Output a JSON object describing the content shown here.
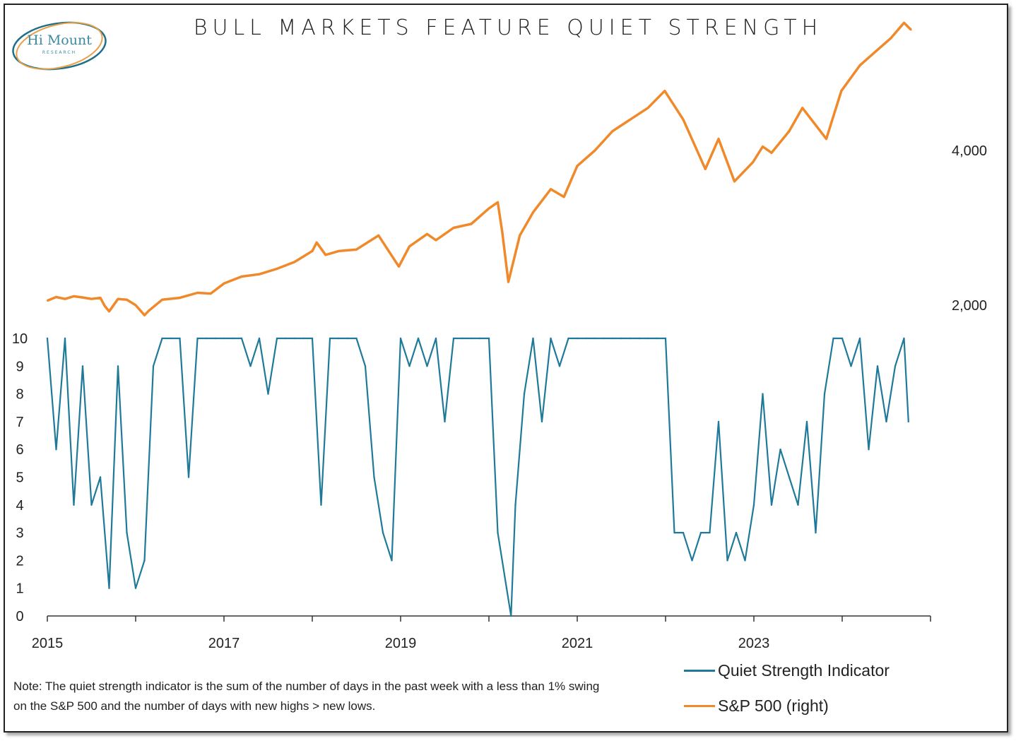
{
  "title": "BULL MARKETS FEATURE QUIET STRENGTH",
  "logo": {
    "name": "Hi Mount",
    "sub": "RESEARCH"
  },
  "note": "Note: The quiet strength indicator is the sum of the number of days in the past week with a less than 1% swing on the S&P 500 and the number of days with new highs > new lows.",
  "colors": {
    "qsi": "#1f7a99",
    "spx": "#f0892a",
    "logo": "#3b8aa0",
    "logo_ring_orange": "#e8a04a"
  },
  "chart_data": {
    "type": "line",
    "title": "BULL MARKETS FEATURE QUIET STRENGTH",
    "x_ticks": [
      "2015",
      "2017",
      "2019",
      "2021",
      "2023"
    ],
    "x_range": [
      2015.0,
      2025.0
    ],
    "left_axis": {
      "ticks": [
        0,
        1,
        2,
        3,
        4,
        5,
        6,
        7,
        8,
        9,
        10
      ],
      "ylim": [
        0,
        10
      ]
    },
    "right_axis": {
      "ticks": [
        2000,
        4000
      ],
      "tick_labels": [
        "2,000",
        "4,000"
      ]
    },
    "legend_position": "bottom-right",
    "series": [
      {
        "name": "Quiet Strength Indicator",
        "axis": "left",
        "x": [
          2015.0,
          2015.1,
          2015.2,
          2015.3,
          2015.4,
          2015.5,
          2015.6,
          2015.7,
          2015.8,
          2015.9,
          2016.0,
          2016.1,
          2016.2,
          2016.3,
          2016.4,
          2016.5,
          2016.6,
          2016.7,
          2016.8,
          2016.9,
          2017.0,
          2017.1,
          2017.2,
          2017.3,
          2017.4,
          2017.5,
          2017.6,
          2017.7,
          2017.8,
          2017.9,
          2018.0,
          2018.1,
          2018.2,
          2018.3,
          2018.4,
          2018.5,
          2018.6,
          2018.7,
          2018.8,
          2018.9,
          2019.0,
          2019.1,
          2019.2,
          2019.3,
          2019.4,
          2019.5,
          2019.6,
          2019.7,
          2019.8,
          2019.9,
          2020.0,
          2020.1,
          2020.2,
          2020.25,
          2020.3,
          2020.4,
          2020.5,
          2020.6,
          2020.7,
          2020.8,
          2020.9,
          2021.0,
          2021.1,
          2021.2,
          2021.3,
          2021.4,
          2021.5,
          2021.6,
          2021.7,
          2021.8,
          2021.9,
          2022.0,
          2022.1,
          2022.2,
          2022.3,
          2022.4,
          2022.5,
          2022.6,
          2022.7,
          2022.8,
          2022.9,
          2023.0,
          2023.1,
          2023.2,
          2023.3,
          2023.4,
          2023.5,
          2023.6,
          2023.7,
          2023.8,
          2023.9,
          2024.0,
          2024.1,
          2024.2,
          2024.3,
          2024.4,
          2024.5,
          2024.6,
          2024.7,
          2024.75
        ],
        "y": [
          10,
          6,
          10,
          4,
          9,
          4,
          5,
          1,
          9,
          3,
          1,
          2,
          9,
          10,
          10,
          10,
          5,
          10,
          10,
          10,
          10,
          10,
          10,
          9,
          10,
          8,
          10,
          10,
          10,
          10,
          10,
          4,
          10,
          10,
          10,
          10,
          9,
          5,
          3,
          2,
          10,
          9,
          10,
          9,
          10,
          7,
          10,
          10,
          10,
          10,
          10,
          3,
          1,
          0,
          4,
          8,
          10,
          7,
          10,
          9,
          10,
          10,
          10,
          10,
          10,
          10,
          10,
          10,
          10,
          10,
          10,
          10,
          3,
          3,
          2,
          3,
          3,
          7,
          2,
          3,
          2,
          4,
          8,
          4,
          6,
          5,
          4,
          7,
          3,
          8,
          10,
          10,
          9,
          10,
          6,
          9,
          7,
          9,
          10,
          7
        ]
      },
      {
        "name": "S&P 500 (right)",
        "axis": "right",
        "x": [
          2015.0,
          2015.1,
          2015.2,
          2015.3,
          2015.4,
          2015.5,
          2015.6,
          2015.65,
          2015.7,
          2015.8,
          2015.9,
          2016.0,
          2016.1,
          2016.15,
          2016.3,
          2016.5,
          2016.7,
          2016.85,
          2017.0,
          2017.2,
          2017.4,
          2017.6,
          2017.8,
          2018.0,
          2018.05,
          2018.15,
          2018.3,
          2018.5,
          2018.75,
          2018.98,
          2019.1,
          2019.3,
          2019.4,
          2019.6,
          2019.8,
          2020.0,
          2020.1,
          2020.15,
          2020.22,
          2020.35,
          2020.5,
          2020.7,
          2020.85,
          2021.0,
          2021.2,
          2021.4,
          2021.6,
          2021.8,
          2021.99,
          2022.2,
          2022.45,
          2022.6,
          2022.78,
          2022.99,
          2023.1,
          2023.2,
          2023.4,
          2023.55,
          2023.82,
          2023.99,
          2024.2,
          2024.4,
          2024.55,
          2024.7,
          2024.78
        ],
        "y": [
          2058,
          2105,
          2080,
          2115,
          2100,
          2080,
          2095,
          1990,
          1920,
          2080,
          2070,
          2000,
          1870,
          1930,
          2070,
          2095,
          2160,
          2150,
          2280,
          2370,
          2400,
          2470,
          2560,
          2700,
          2810,
          2650,
          2700,
          2720,
          2900,
          2500,
          2760,
          2920,
          2840,
          3000,
          3050,
          3250,
          3330,
          2950,
          2300,
          2900,
          3200,
          3500,
          3400,
          3800,
          4000,
          4250,
          4400,
          4550,
          4770,
          4400,
          3760,
          4150,
          3600,
          3850,
          4050,
          3970,
          4250,
          4550,
          4150,
          4770,
          5100,
          5300,
          5450,
          5650,
          5560
        ]
      }
    ]
  },
  "legend": {
    "qsi": "Quiet Strength Indicator",
    "spx": "S&P 500 (right)"
  }
}
